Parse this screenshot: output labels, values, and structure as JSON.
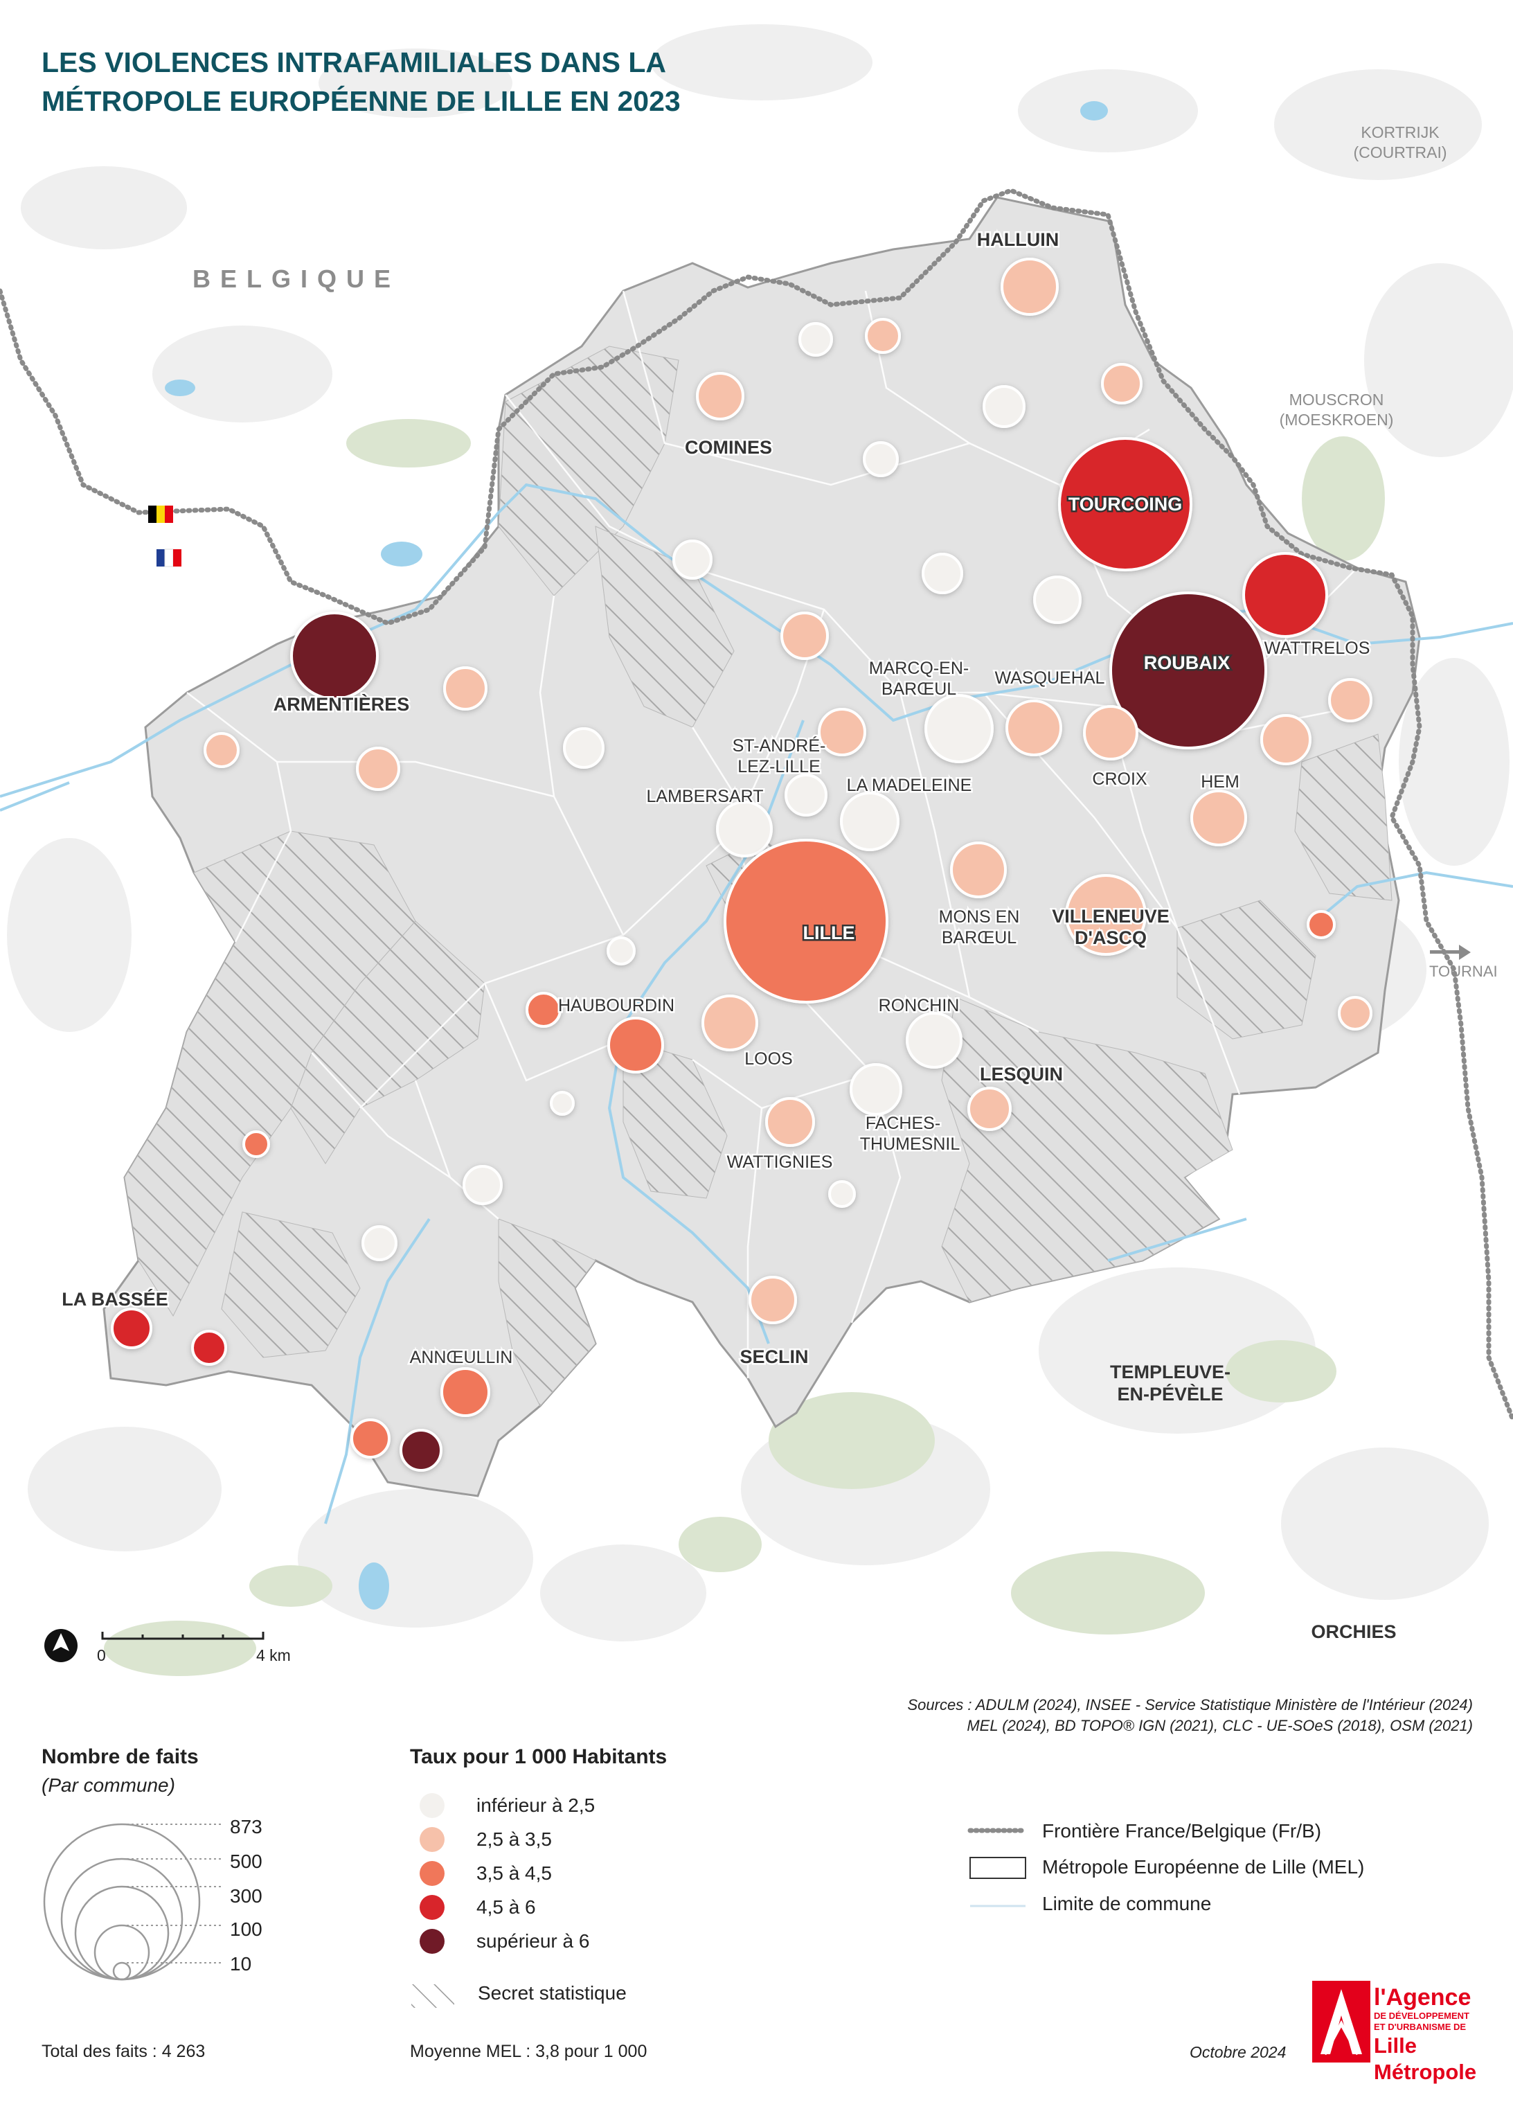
{
  "title_line1": "LES VIOLENCES INTRAFAMILIALES DANS LA",
  "title_line2": "MÉTROPOLE EUROPÉENNE DE LILLE EN 2023",
  "colors": {
    "lt25": "#f3f1ee",
    "r25_35": "#f6c1aa",
    "r35_45": "#f0775a",
    "r45_6": "#d8252b",
    "gt6": "#701a27",
    "mel": "#e1e1e1",
    "water": "#9fd2ec",
    "forest": "#dbe5d0",
    "urban": "#ececec",
    "title": "#0f5361"
  },
  "region_labels": {
    "belgique": "BELGIQUE",
    "kortrijk_1": "KORTRIJK",
    "kortrijk_2": "(COURTRAI)",
    "mouscron_1": "MOUSCRON",
    "mouscron_2": "(MOESKROEN)",
    "tournai": "TOURNAI",
    "templeuve_1": "TEMPLEUVE-",
    "templeuve_2": "EN-PÉVÈLE",
    "orchies": "ORCHIES"
  },
  "commune_labels": {
    "halluin": "HALLUIN",
    "comines": "COMINES",
    "tourcoing": "TOURCOING",
    "roubaix": "ROUBAIX",
    "wattrelos": "WATTRELOS",
    "armentieres": "ARMENTIÈRES",
    "marcq_1": "MARCQ-EN-",
    "marcq_2": "BARŒUL",
    "wasquehal": "WASQUEHAL",
    "st_andre_1": "ST-ANDRÉ-",
    "st_andre_2": "LEZ-LILLE",
    "croix": "CROIX",
    "hem": "HEM",
    "la_madeleine": "LA MADELEINE",
    "lambersart": "LAMBERSART",
    "lille": "LILLE",
    "mons_1": "MONS EN",
    "mons_2": "BARŒUL",
    "villeneuve_1": "VILLENEUVE",
    "villeneuve_2": "D'ASCQ",
    "haubourdin": "HAUBOURDIN",
    "ronchin": "RONCHIN",
    "loos": "LOOS",
    "lesquin": "LESQUIN",
    "faches_1": "FACHES-",
    "faches_2": "THUMESNIL",
    "wattignies": "WATTIGNIES",
    "la_bassee": "LA BASSÉE",
    "anneullin": "ANNŒULLIN",
    "seclin": "SECLIN"
  },
  "scale": {
    "zero": "0",
    "four": "4 km"
  },
  "sources_line1": "Sources :  ADULM (2024), INSEE - Service Statistique Ministère de l'Intérieur (2024)",
  "sources_line2": "MEL (2024), BD TOPO® IGN (2021), CLC - UE-SOeS (2018), OSM (2021)",
  "legend_size": {
    "title": "Nombre de faits",
    "subtitle": "(Par commune)",
    "values": [
      "873",
      "500",
      "300",
      "100",
      "10"
    ]
  },
  "legend_rate": {
    "title": "Taux pour 1 000 Habitants",
    "classes": [
      "inférieur à 2,5",
      "2,5 à 3,5",
      "3,5 à 4,5",
      "4,5 à 6",
      "supérieur à 6"
    ],
    "secret": "Secret statistique"
  },
  "legend_lines": {
    "border": "Frontière France/Belgique (Fr/B)",
    "mel": "Métropole Européenne de Lille (MEL)",
    "commune": "Limite de commune"
  },
  "total": "Total des faits : 4 263",
  "mean": "Moyenne MEL : 3,8 pour 1 000",
  "date": "Octobre 2024",
  "logo": {
    "line1": "l'Agence",
    "line2": "DE DÉVELOPPEMENT",
    "line3": "ET D'URBANISME DE",
    "line4": "Lille Métropole"
  }
}
